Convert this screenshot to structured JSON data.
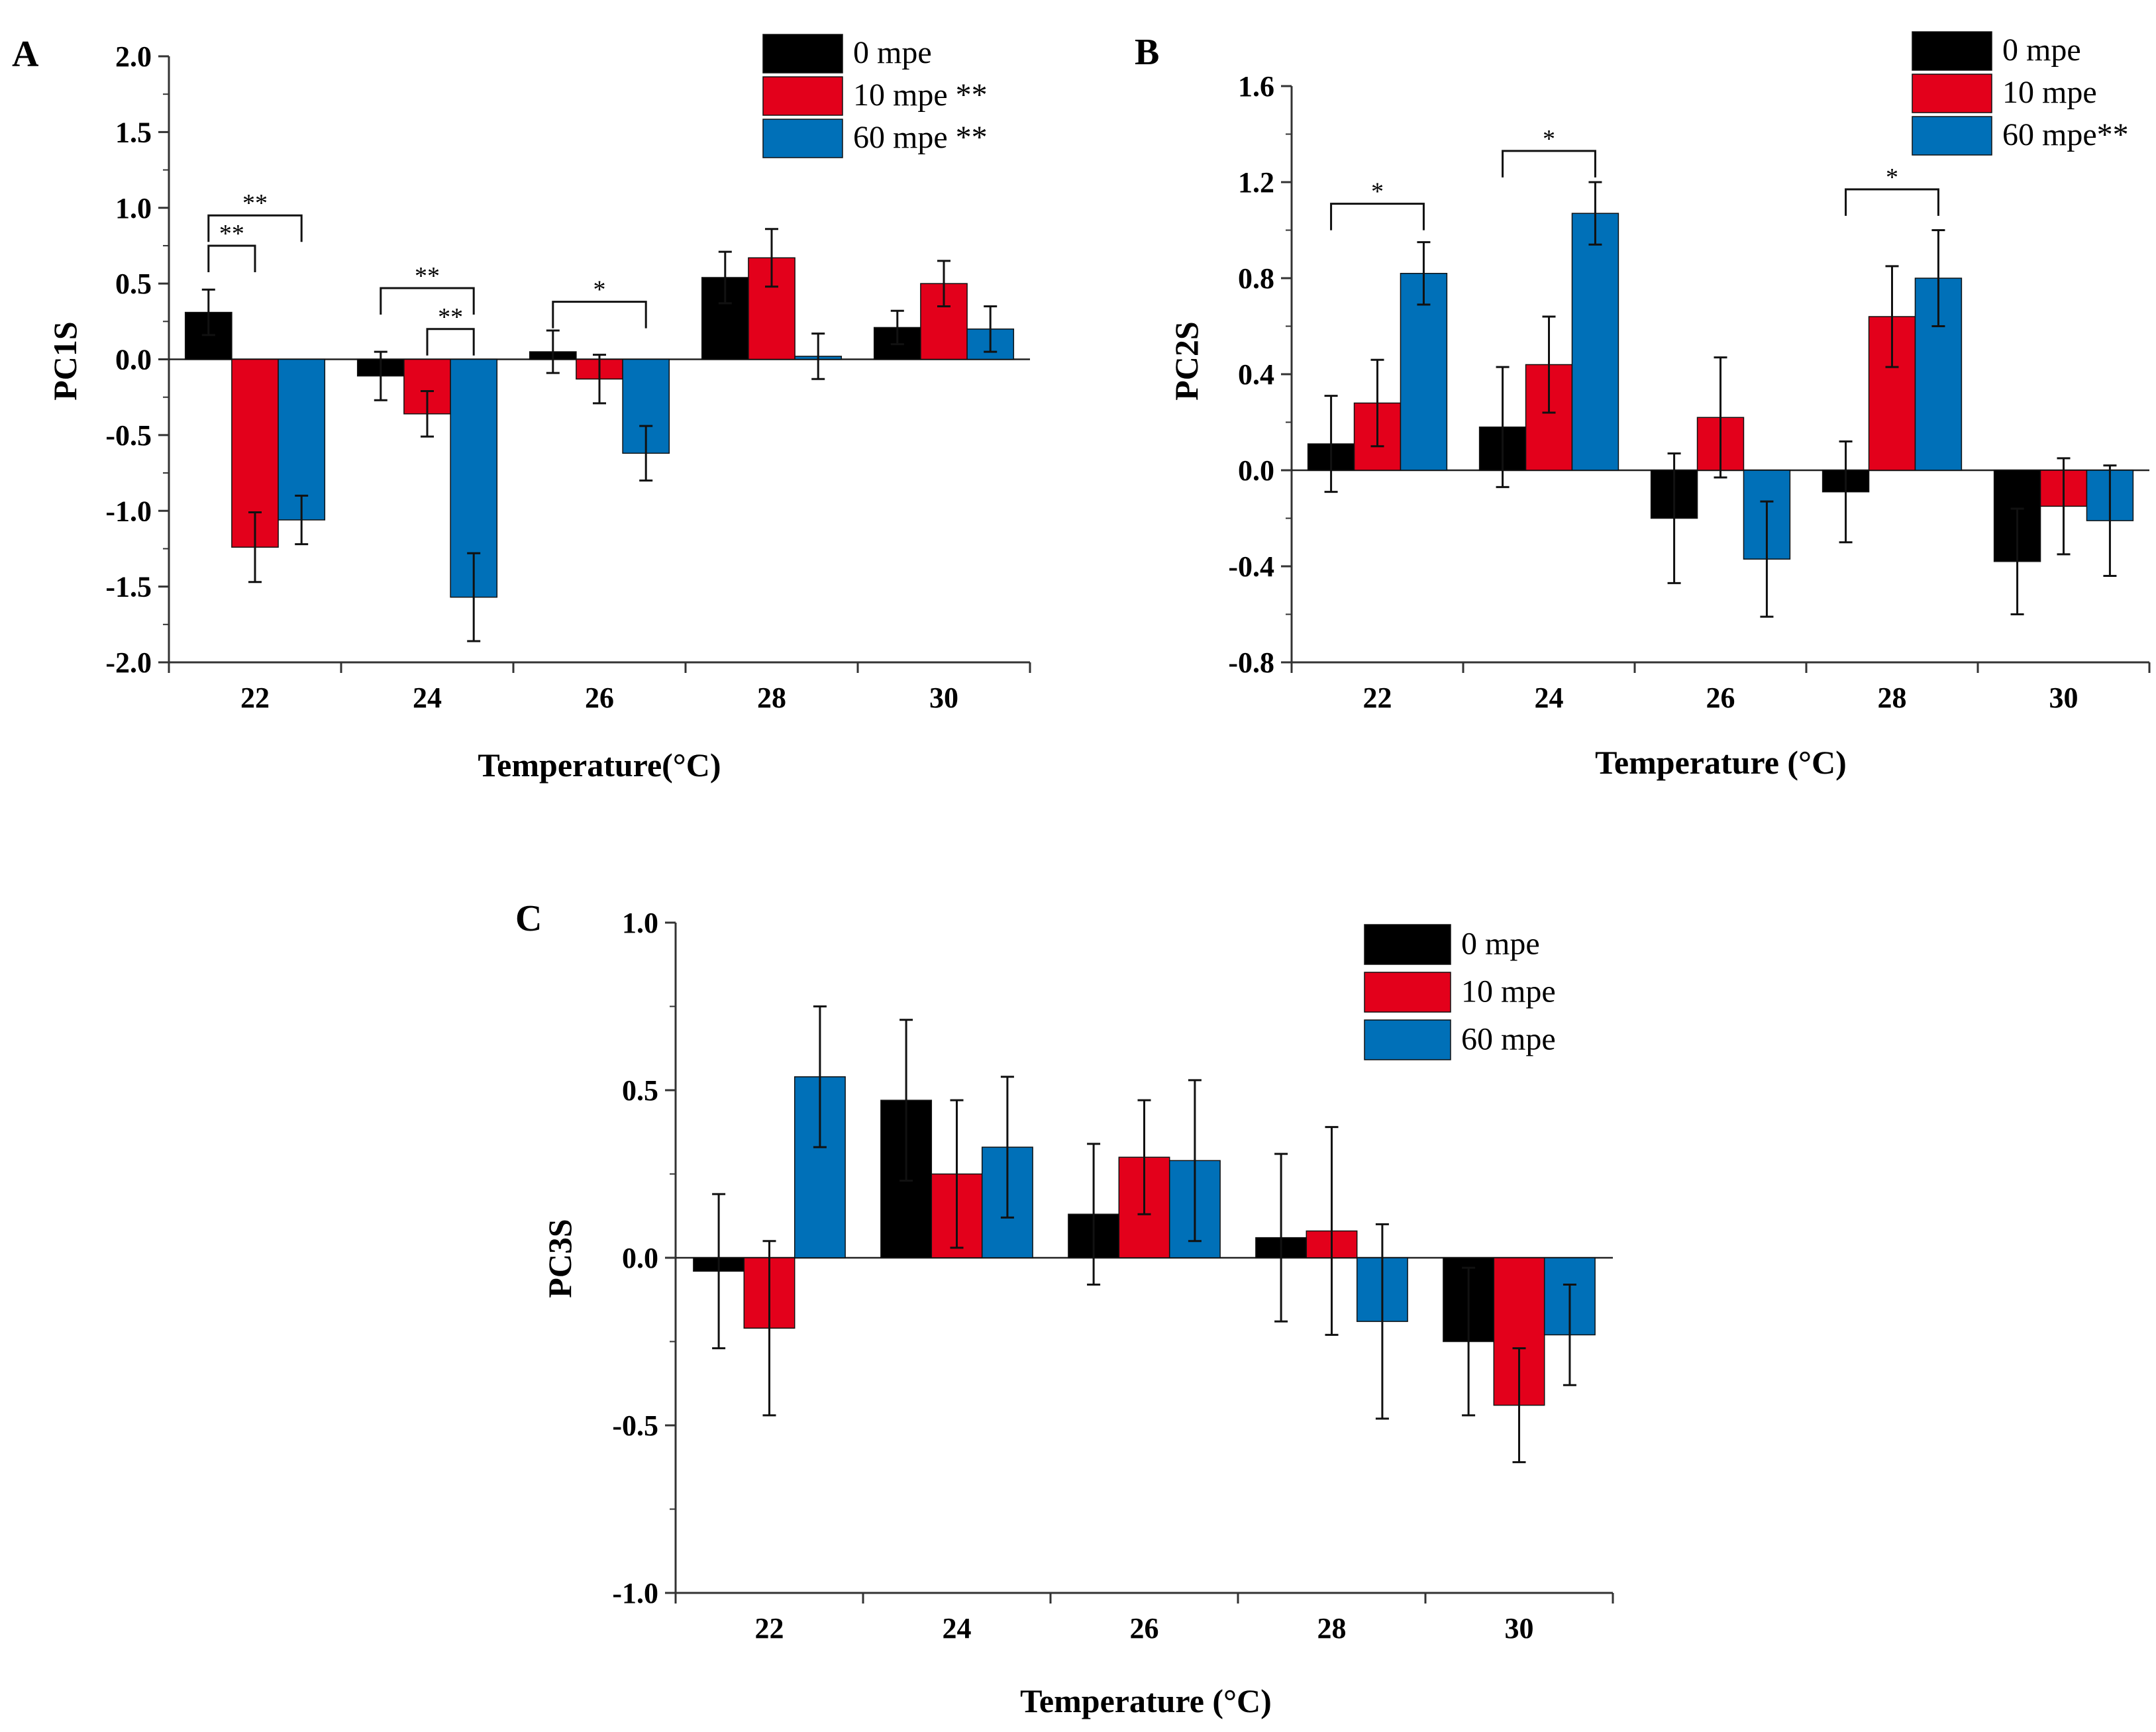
{
  "chart_data": [
    {
      "id": "A",
      "type": "bar",
      "panel_label": "A",
      "xlabel": "Temperature(°C)",
      "ylabel": "PC1S",
      "categories": [
        "22",
        "24",
        "26",
        "28",
        "30"
      ],
      "ylim": [
        -2.0,
        2.0
      ],
      "yticks": [
        "2.0",
        "1.5",
        "1.0",
        "0.5",
        "0.0",
        "-0.5",
        "-1.0",
        "-1.5",
        "-2.0"
      ],
      "series": [
        {
          "name": "0 mpe",
          "legend_label": "0 mpe",
          "color": "#000000",
          "values": [
            0.31,
            -0.11,
            0.05,
            0.54,
            0.21
          ],
          "errors": [
            0.15,
            0.16,
            0.14,
            0.17,
            0.11
          ]
        },
        {
          "name": "10 mpe",
          "legend_label": "10 mpe **",
          "color": "#e3001b",
          "values": [
            -1.24,
            -0.36,
            -0.13,
            0.67,
            0.5
          ],
          "errors": [
            0.23,
            0.15,
            0.16,
            0.19,
            0.15
          ]
        },
        {
          "name": "60 mpe",
          "legend_label": "60 mpe **",
          "color": "#0070b8",
          "values": [
            -1.06,
            -1.57,
            -0.62,
            0.02,
            0.2
          ],
          "errors": [
            0.16,
            0.29,
            0.18,
            0.15,
            0.15
          ]
        }
      ],
      "legend_position": "top-right",
      "significance": [
        {
          "category": 0,
          "from": 0,
          "to": 1,
          "y": 0.75,
          "label": "**"
        },
        {
          "category": 0,
          "from": 0,
          "to": 2,
          "y": 0.95,
          "label": "**"
        },
        {
          "category": 1,
          "from": 0,
          "to": 2,
          "y": 0.47,
          "label": "**"
        },
        {
          "category": 1,
          "from": 1,
          "to": 2,
          "y": 0.2,
          "label": "**"
        },
        {
          "category": 2,
          "from": 0,
          "to": 2,
          "y": 0.38,
          "label": "*"
        }
      ]
    },
    {
      "id": "B",
      "type": "bar",
      "panel_label": "B",
      "xlabel": "Temperature (°C)",
      "ylabel": "PC2S",
      "categories": [
        "22",
        "24",
        "26",
        "28",
        "30"
      ],
      "ylim": [
        -0.8,
        1.6
      ],
      "yticks": [
        "1.6",
        "1.2",
        "0.8",
        "0.4",
        "0.0",
        "-0.4",
        "-0.8"
      ],
      "series": [
        {
          "name": "0 mpe",
          "legend_label": "0 mpe",
          "color": "#000000",
          "values": [
            0.11,
            0.18,
            -0.2,
            -0.09,
            -0.38
          ],
          "errors": [
            0.2,
            0.25,
            0.27,
            0.21,
            0.22
          ]
        },
        {
          "name": "10 mpe",
          "legend_label": "10 mpe",
          "color": "#e3001b",
          "values": [
            0.28,
            0.44,
            0.22,
            0.64,
            -0.15
          ],
          "errors": [
            0.18,
            0.2,
            0.25,
            0.21,
            0.2
          ]
        },
        {
          "name": "60 mpe",
          "legend_label": "60 mpe**",
          "color": "#0070b8",
          "values": [
            0.82,
            1.07,
            -0.37,
            0.8,
            -0.21
          ],
          "errors": [
            0.13,
            0.13,
            0.24,
            0.2,
            0.23
          ]
        }
      ],
      "legend_position": "top-right",
      "significance": [
        {
          "category": 0,
          "from": 0,
          "to": 2,
          "y": 1.11,
          "label": "*"
        },
        {
          "category": 1,
          "from": 0,
          "to": 2,
          "y": 1.33,
          "label": "*"
        },
        {
          "category": 3,
          "from": 0,
          "to": 2,
          "y": 1.17,
          "label": "*"
        }
      ]
    },
    {
      "id": "C",
      "type": "bar",
      "panel_label": "C",
      "xlabel": "Temperature (°C)",
      "ylabel": "PC3S",
      "categories": [
        "22",
        "24",
        "26",
        "28",
        "30"
      ],
      "ylim": [
        -1.0,
        1.0
      ],
      "yticks": [
        "1.0",
        "0.5",
        "0.0",
        "-0.5",
        "-1.0"
      ],
      "series": [
        {
          "name": "0 mpe",
          "legend_label": "0 mpe",
          "color": "#000000",
          "values": [
            -0.04,
            0.47,
            0.13,
            0.06,
            -0.25
          ],
          "errors": [
            0.23,
            0.24,
            0.21,
            0.25,
            0.22
          ]
        },
        {
          "name": "10 mpe",
          "legend_label": "10 mpe",
          "color": "#e3001b",
          "values": [
            -0.21,
            0.25,
            0.3,
            0.08,
            -0.44
          ],
          "errors": [
            0.26,
            0.22,
            0.17,
            0.31,
            0.17
          ]
        },
        {
          "name": "60 mpe",
          "legend_label": "60 mpe",
          "color": "#0070b8",
          "values": [
            0.54,
            0.33,
            0.29,
            -0.19,
            -0.23
          ],
          "errors": [
            0.21,
            0.21,
            0.24,
            0.29,
            0.15
          ]
        }
      ],
      "legend_position": "top-right",
      "significance": []
    }
  ]
}
